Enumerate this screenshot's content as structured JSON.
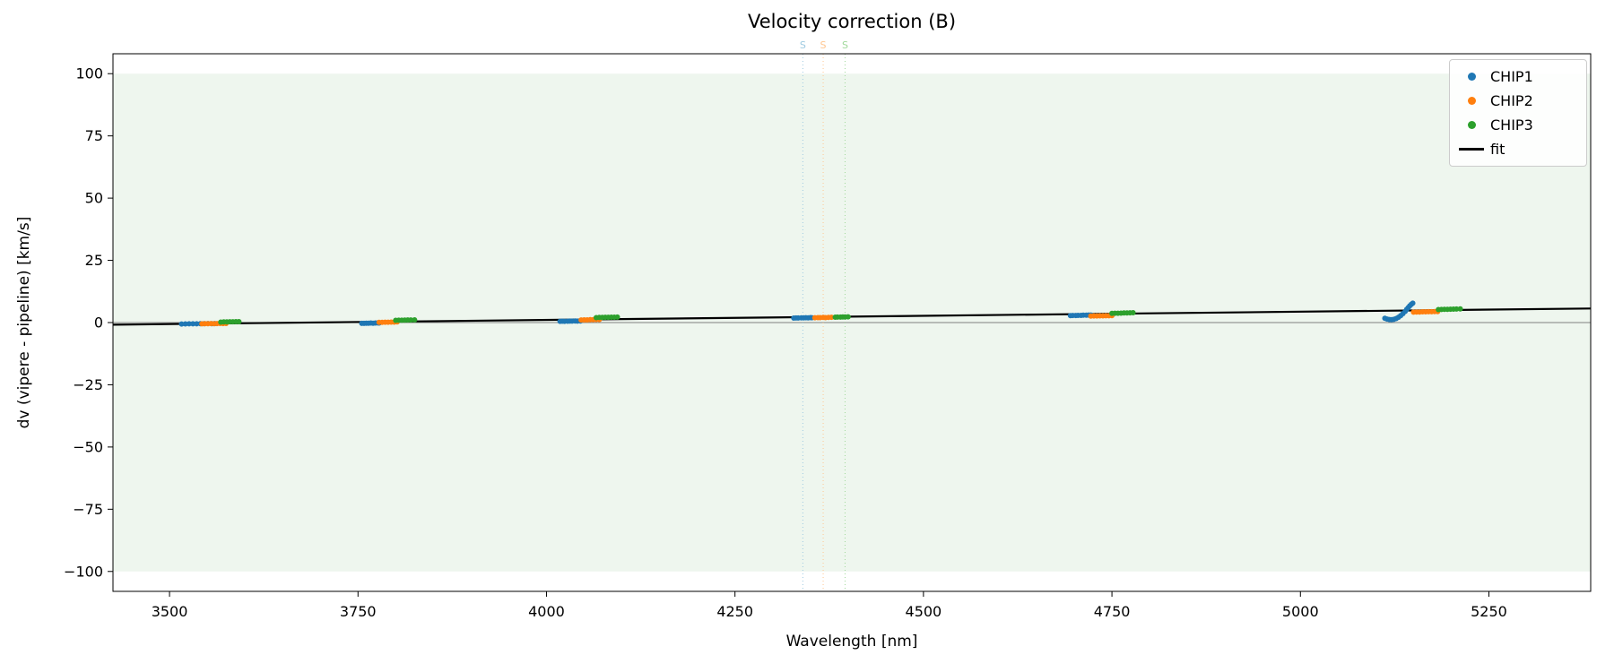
{
  "title": "Velocity correction (B)",
  "chart_data": {
    "type": "scatter",
    "title": "Velocity correction (B)",
    "xlabel": "Wavelength [nm]",
    "ylabel": "dv (vipere - pipeline) [km/s]",
    "xlim": [
      3425,
      5385
    ],
    "ylim": [
      -108,
      108
    ],
    "xticks": [
      3500,
      3750,
      4000,
      4250,
      4500,
      4750,
      5000,
      5250
    ],
    "yticks": [
      -100,
      -75,
      -50,
      -25,
      0,
      25,
      50,
      75,
      100
    ],
    "grid": false,
    "legend_position": "upper right",
    "background_band": {
      "y_min": -100,
      "y_max": 100,
      "color": "#eef6ee"
    },
    "zero_line": {
      "y": 0,
      "color": "#808080"
    },
    "vlines": [
      {
        "x": 4340,
        "label": "S",
        "color": "#9ecae1"
      },
      {
        "x": 4367,
        "label": "S",
        "color": "#ffc690"
      },
      {
        "x": 4396,
        "label": "S",
        "color": "#a1d99b"
      }
    ],
    "fit_line": {
      "name": "fit",
      "color": "#000000",
      "points": [
        [
          3425,
          -0.85
        ],
        [
          5385,
          5.65
        ]
      ]
    },
    "series": [
      {
        "name": "CHIP1",
        "color": "#1f77b4",
        "marker": "circle",
        "clusters": [
          [
            [
              3516,
              -0.6
            ],
            [
              3521,
              -0.55
            ],
            [
              3526,
              -0.5
            ],
            [
              3531,
              -0.5
            ],
            [
              3536,
              -0.5
            ],
            [
              3541,
              -0.45
            ],
            [
              3546,
              -0.45
            ],
            [
              3551,
              -0.4
            ],
            [
              3556,
              -0.45
            ],
            [
              3560,
              -0.4
            ]
          ],
          [
            [
              3755,
              -0.3
            ],
            [
              3758,
              -0.3
            ],
            [
              3761,
              -0.25
            ],
            [
              3764,
              -0.25
            ],
            [
              3767,
              -0.2
            ],
            [
              3770,
              -0.25
            ],
            [
              3773,
              -0.2
            ],
            [
              3776,
              -0.15
            ],
            [
              3778,
              -0.2
            ]
          ],
          [
            [
              4018,
              0.5
            ],
            [
              4021,
              0.55
            ],
            [
              4024,
              0.5
            ],
            [
              4028,
              0.55
            ],
            [
              4031,
              0.6
            ],
            [
              4034,
              0.6
            ],
            [
              4038,
              0.65
            ],
            [
              4041,
              0.6
            ],
            [
              4045,
              0.65
            ]
          ],
          [
            [
              4328,
              1.8
            ],
            [
              4331,
              1.85
            ],
            [
              4334,
              1.85
            ],
            [
              4338,
              1.9
            ],
            [
              4341,
              1.9
            ],
            [
              4344,
              1.95
            ],
            [
              4347,
              1.9
            ],
            [
              4350,
              2.0
            ],
            [
              4352,
              1.95
            ]
          ],
          [
            [
              4695,
              2.8
            ],
            [
              4698,
              2.85
            ],
            [
              4702,
              2.85
            ],
            [
              4705,
              2.9
            ],
            [
              4709,
              2.9
            ],
            [
              4712,
              2.95
            ],
            [
              4716,
              2.95
            ],
            [
              4719,
              3.0
            ],
            [
              4722,
              3.0
            ]
          ],
          [
            [
              5112,
              1.7
            ],
            [
              5115,
              1.4
            ],
            [
              5118,
              1.2
            ],
            [
              5121,
              1.15
            ],
            [
              5124,
              1.3
            ],
            [
              5127,
              1.6
            ],
            [
              5130,
              2.1
            ],
            [
              5133,
              2.8
            ],
            [
              5136,
              3.6
            ],
            [
              5139,
              4.5
            ],
            [
              5141,
              5.3
            ],
            [
              5143,
              6.0
            ],
            [
              5145,
              6.7
            ],
            [
              5147,
              7.3
            ],
            [
              5149,
              7.8
            ]
          ]
        ]
      },
      {
        "name": "CHIP2",
        "color": "#ff7f0e",
        "marker": "circle",
        "clusters": [
          [
            [
              3543,
              -0.5
            ],
            [
              3547,
              -0.45
            ],
            [
              3551,
              -0.45
            ],
            [
              3555,
              -0.4
            ],
            [
              3559,
              -0.45
            ],
            [
              3563,
              -0.4
            ],
            [
              3567,
              -0.35
            ],
            [
              3571,
              -0.4
            ],
            [
              3575,
              -0.35
            ]
          ],
          [
            [
              3778,
              0.1
            ],
            [
              3782,
              0.1
            ],
            [
              3786,
              0.15
            ],
            [
              3790,
              0.15
            ],
            [
              3794,
              0.2
            ],
            [
              3798,
              0.2
            ],
            [
              3802,
              0.25
            ]
          ],
          [
            [
              4046,
              1.05
            ],
            [
              4050,
              1.1
            ],
            [
              4054,
              1.1
            ],
            [
              4058,
              1.15
            ],
            [
              4062,
              1.15
            ],
            [
              4066,
              1.2
            ],
            [
              4070,
              1.2
            ]
          ],
          [
            [
              4356,
              1.95
            ],
            [
              4360,
              2.0
            ],
            [
              4363,
              2.0
            ],
            [
              4367,
              2.05
            ],
            [
              4370,
              2.0
            ],
            [
              4374,
              2.05
            ],
            [
              4378,
              2.1
            ]
          ],
          [
            [
              4722,
              2.6
            ],
            [
              4726,
              2.65
            ],
            [
              4730,
              2.65
            ],
            [
              4734,
              2.7
            ],
            [
              4738,
              2.7
            ],
            [
              4742,
              2.75
            ],
            [
              4746,
              2.75
            ],
            [
              4750,
              2.8
            ]
          ],
          [
            [
              5150,
              4.2
            ],
            [
              5154,
              4.25
            ],
            [
              5158,
              4.25
            ],
            [
              5162,
              4.3
            ],
            [
              5166,
              4.3
            ],
            [
              5170,
              4.35
            ],
            [
              5174,
              4.35
            ],
            [
              5178,
              4.4
            ],
            [
              5182,
              4.4
            ]
          ]
        ]
      },
      {
        "name": "CHIP3",
        "color": "#2ca02c",
        "marker": "circle",
        "clusters": [
          [
            [
              3568,
              0.2
            ],
            [
              3572,
              0.25
            ],
            [
              3576,
              0.25
            ],
            [
              3580,
              0.3
            ],
            [
              3584,
              0.3
            ],
            [
              3588,
              0.35
            ],
            [
              3592,
              0.35
            ]
          ],
          [
            [
              3800,
              0.9
            ],
            [
              3804,
              0.95
            ],
            [
              3808,
              0.95
            ],
            [
              3812,
              1.0
            ],
            [
              3816,
              1.05
            ],
            [
              3820,
              1.05
            ],
            [
              3825,
              1.1
            ]
          ],
          [
            [
              4066,
              2.0
            ],
            [
              4070,
              2.05
            ],
            [
              4074,
              2.05
            ],
            [
              4078,
              2.1
            ],
            [
              4082,
              2.1
            ],
            [
              4086,
              2.15
            ],
            [
              4090,
              2.15
            ],
            [
              4094,
              2.2
            ]
          ],
          [
            [
              4383,
              2.15
            ],
            [
              4386,
              2.2
            ],
            [
              4390,
              2.2
            ],
            [
              4393,
              2.25
            ],
            [
              4396,
              2.25
            ],
            [
              4400,
              2.3
            ]
          ],
          [
            [
              4750,
              3.7
            ],
            [
              4754,
              3.75
            ],
            [
              4758,
              3.75
            ],
            [
              4762,
              3.8
            ],
            [
              4766,
              3.85
            ],
            [
              4770,
              3.85
            ],
            [
              4774,
              3.9
            ],
            [
              4778,
              3.95
            ]
          ],
          [
            [
              5183,
              5.2
            ],
            [
              5187,
              5.25
            ],
            [
              5191,
              5.3
            ],
            [
              5195,
              5.3
            ],
            [
              5199,
              5.35
            ],
            [
              5203,
              5.4
            ],
            [
              5207,
              5.45
            ],
            [
              5212,
              5.5
            ]
          ]
        ]
      }
    ],
    "legend": [
      {
        "label": "CHIP1",
        "type": "marker",
        "color": "#1f77b4"
      },
      {
        "label": "CHIP2",
        "type": "marker",
        "color": "#ff7f0e"
      },
      {
        "label": "CHIP3",
        "type": "marker",
        "color": "#2ca02c"
      },
      {
        "label": "fit",
        "type": "line",
        "color": "#000000"
      }
    ]
  }
}
